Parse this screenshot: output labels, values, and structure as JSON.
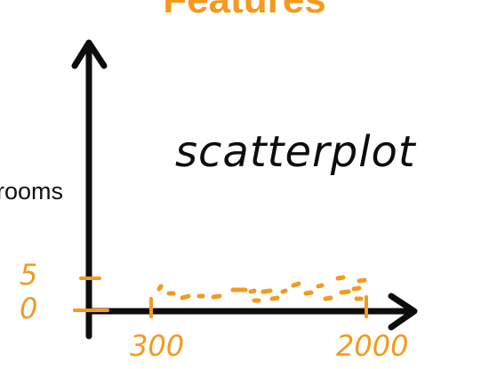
{
  "diagram": {
    "title": "Features",
    "y_axis_label": "rooms",
    "x_axis_label": "...",
    "annotation": "scatterplot",
    "y_ticks": [
      "5",
      "0"
    ],
    "x_ticks": [
      "300",
      "2000"
    ],
    "colors": {
      "ink": "#0d0d0d",
      "accent": "#f39a1f"
    }
  }
}
